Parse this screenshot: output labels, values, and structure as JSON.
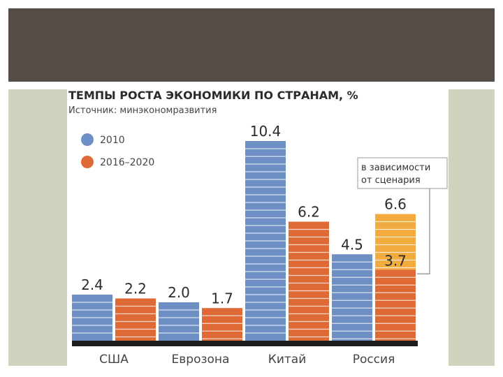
{
  "chart_data": {
    "type": "bar",
    "title": "ТЕМПЫ РОСТА ЭКОНОМИКИ  ПО СТРАНАМ, %",
    "subtitle": "Источник: минэкономразвития",
    "categories": [
      "США",
      "Еврозона",
      "Китай",
      "Россия"
    ],
    "series": [
      {
        "name": "2010",
        "color": "#6d8fc3",
        "values": [
          2.4,
          2.0,
          10.4,
          4.5
        ],
        "labels": [
          "2.4",
          "2.0",
          "10.4",
          "4.5"
        ]
      },
      {
        "name": "2016–2020",
        "color": "#e06a35",
        "values": [
          2.2,
          1.7,
          6.2,
          3.7
        ],
        "labels": [
          "2.2",
          "1.7",
          "6.2",
          "3.7"
        ]
      }
    ],
    "russia_range": {
      "low": 3.7,
      "high": 6.6,
      "label": "6.6",
      "color": "#f2ab3f"
    },
    "annotation": {
      "line1": "в зависимости",
      "line2": "от сценария"
    },
    "ylim": [
      0,
      11
    ],
    "grid": false,
    "legend": "top-left"
  }
}
